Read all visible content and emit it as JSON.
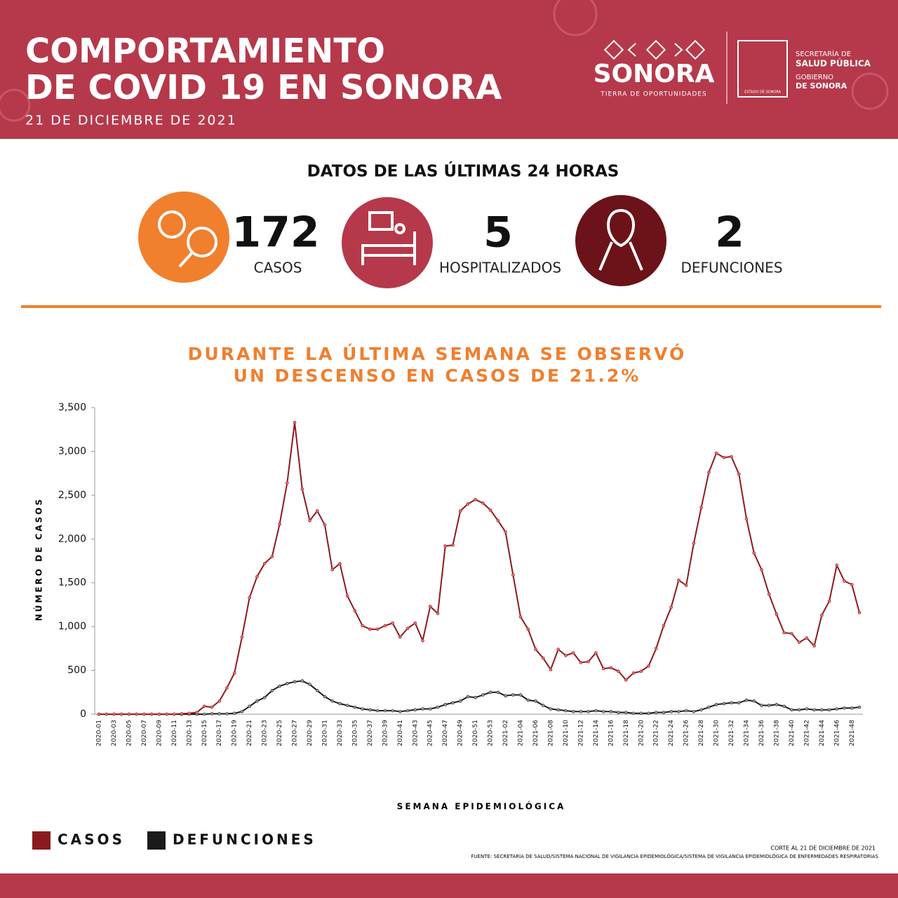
{
  "header": {
    "title_lines": [
      "COMPORTAMIENTO",
      "DE COVID 19 EN SONORA"
    ],
    "date": "21 DE DICIEMBRE DE 2021",
    "logo": {
      "name": "SONORA",
      "slogan": "TIERRA DE OPORTUNIDADES",
      "shield": "ESTADO DE SONORA",
      "lines": [
        "SECRETARÍA DE",
        "SALUD PÚBLICA",
        "GOBIERNO",
        "DE SONORA"
      ]
    }
  },
  "stats": {
    "heading": "DATOS DE LAS ÚLTIMAS 24 HORAS",
    "items": [
      {
        "value": 172,
        "label": "CASOS"
      },
      {
        "value": 5,
        "label": "HOSPITALIZADOS"
      },
      {
        "value": 2,
        "label": "DEFUNCIONES"
      }
    ]
  },
  "chart_data": {
    "type": "line",
    "title_lines": [
      "DURANTE LA ÚLTIMA SEMANA SE OBSERVÓ",
      "UN DESCENSO EN CASOS DE 21.2%"
    ],
    "y_label": "NÚMERO DE CASOS",
    "x_label": "SEMANA EPIDEMIOLÓGICA",
    "categories": [
      "2020-01",
      null,
      "2020-03",
      null,
      "2020-05",
      null,
      "2020-07",
      null,
      "2020-09",
      null,
      "2020-11",
      null,
      "2020-13",
      null,
      "2020-15",
      null,
      "2020-17",
      null,
      "2020-19",
      null,
      "2020-21",
      null,
      "2020-23",
      null,
      "2020-25",
      null,
      "2020-27",
      null,
      "2020-29",
      null,
      "2020-31",
      null,
      "2020-33",
      null,
      "2020-35",
      null,
      "2020-37",
      null,
      "2020-39",
      null,
      "2020-41",
      null,
      "2020-43",
      null,
      "2020-45",
      null,
      "2020-47",
      null,
      "2020-49",
      null,
      "2020-51",
      null,
      "2020-53",
      null,
      "2021-02",
      null,
      "2021-04",
      null,
      "2021-06",
      null,
      "2021-08",
      null,
      "2021-10",
      null,
      "2021-12",
      null,
      "2021-14",
      null,
      "2021-16",
      null,
      "2021-18",
      null,
      "2021-20",
      null,
      "2021-22",
      null,
      "2021-24",
      null,
      "2021-26",
      null,
      "2021-28",
      null,
      "2021-30",
      null,
      "2021-32",
      null,
      "2021-34",
      null,
      "2021-36",
      null,
      "2021-38",
      null,
      "2021-40",
      null,
      "2021-42",
      null,
      "2021-44",
      null,
      "2021-46",
      null,
      "2021-48",
      null
    ],
    "series": [
      {
        "name": "CASOS",
        "color": "#8b1a1f",
        "marker": "#f26a74",
        "values": [
          0,
          0,
          0,
          0,
          0,
          0,
          0,
          0,
          0,
          0,
          0,
          5,
          10,
          20,
          90,
          80,
          150,
          300,
          470,
          880,
          1330,
          1570,
          1720,
          1800,
          2170,
          2640,
          3330,
          2570,
          2210,
          2320,
          2160,
          1650,
          1720,
          1350,
          1180,
          1010,
          970,
          970,
          1010,
          1040,
          880,
          980,
          1040,
          840,
          1230,
          1150,
          1920,
          1930,
          2320,
          2400,
          2450,
          2410,
          2330,
          2210,
          2080,
          1590,
          1110,
          970,
          740,
          640,
          510,
          740,
          670,
          700,
          590,
          600,
          700,
          520,
          530,
          490,
          390,
          470,
          490,
          550,
          750,
          1010,
          1220,
          1530,
          1470,
          1950,
          2360,
          2760,
          2980,
          2930,
          2940,
          2740,
          2230,
          1840,
          1650,
          1370,
          1140,
          930,
          920,
          820,
          870,
          780,
          1130,
          1290,
          1700,
          1520,
          1480,
          1160
        ]
      },
      {
        "name": "DEFUNCIONES",
        "color": "#1a1a1a",
        "marker": "#9a9a9a",
        "values": [
          0,
          0,
          0,
          0,
          0,
          0,
          0,
          0,
          0,
          0,
          0,
          0,
          0,
          0,
          0,
          5,
          5,
          5,
          10,
          30,
          90,
          150,
          190,
          270,
          320,
          350,
          370,
          380,
          340,
          270,
          200,
          150,
          120,
          100,
          80,
          60,
          50,
          40,
          40,
          40,
          30,
          40,
          50,
          60,
          60,
          80,
          110,
          130,
          150,
          200,
          190,
          220,
          250,
          250,
          210,
          220,
          220,
          160,
          150,
          100,
          60,
          50,
          40,
          30,
          30,
          30,
          40,
          30,
          30,
          20,
          20,
          10,
          10,
          10,
          20,
          20,
          30,
          30,
          40,
          30,
          50,
          80,
          110,
          120,
          130,
          130,
          160,
          150,
          100,
          100,
          110,
          90,
          50,
          50,
          60,
          50,
          50,
          50,
          60,
          70,
          70,
          80
        ]
      }
    ],
    "ylim": [
      0,
      3500
    ],
    "yticks": [
      0,
      500,
      {
        "value": 1000,
        "label": "1,000"
      },
      {
        "value": 1500,
        "label": "1,500"
      },
      {
        "value": 2000,
        "label": "2,000"
      },
      {
        "value": 2500,
        "label": "2,500"
      },
      {
        "value": 3000,
        "label": "3,000"
      },
      {
        "value": 3500,
        "label": "3,500"
      }
    ],
    "grid": false,
    "legend": "bottom-left"
  },
  "footer": {
    "cut": "CORTE AL 21 DE DICIEMBRE DE 2021",
    "source": "FUENTE: SECRETARÍA DE SALUD/SISTEMA NACIONAL DE VIGILANCIA EPIDEMIOLÓGICA/SISTEMA DE VIGILANCIA EPIDEMIOLÓGICA DE ENFERMEDADES RESPIRATORIAS"
  }
}
